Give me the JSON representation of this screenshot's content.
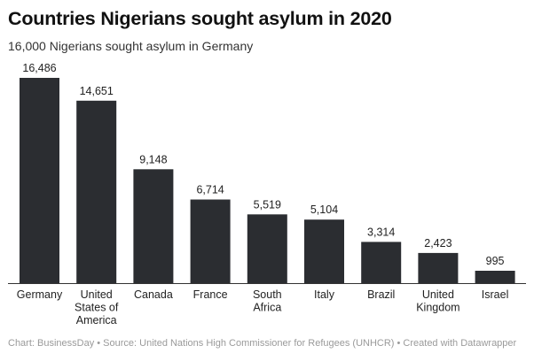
{
  "chart_data": {
    "type": "bar",
    "title": "Countries Nigerians sought asylum in 2020",
    "subtitle": "16,000 Nigerians sought asylum in Germany",
    "xlabel": "",
    "ylabel": "",
    "ylim": [
      0,
      16486
    ],
    "grid": false,
    "categories": [
      "Germany",
      "United States of America",
      "Canada",
      "France",
      "South Africa",
      "Italy",
      "Brazil",
      "United Kingdom",
      "Israel"
    ],
    "category_lines": [
      [
        "Germany"
      ],
      [
        "United",
        "States of",
        "America"
      ],
      [
        "Canada"
      ],
      [
        "France"
      ],
      [
        "South",
        "Africa"
      ],
      [
        "Italy"
      ],
      [
        "Brazil"
      ],
      [
        "United",
        "Kingdom"
      ],
      [
        "Israel"
      ]
    ],
    "values": [
      16486,
      14651,
      9148,
      6714,
      5519,
      5104,
      3314,
      2423,
      995
    ],
    "value_labels": [
      "16,486",
      "14,651",
      "9,148",
      "6,714",
      "5,519",
      "5,104",
      "3,314",
      "2,423",
      "995"
    ],
    "bar_color": "#2b2d31",
    "axis_color": "#333333"
  },
  "footer": "Chart: BusinessDay • Source: United Nations High Commissioner for Refugees (UNHCR) • Created with Datawrapper"
}
